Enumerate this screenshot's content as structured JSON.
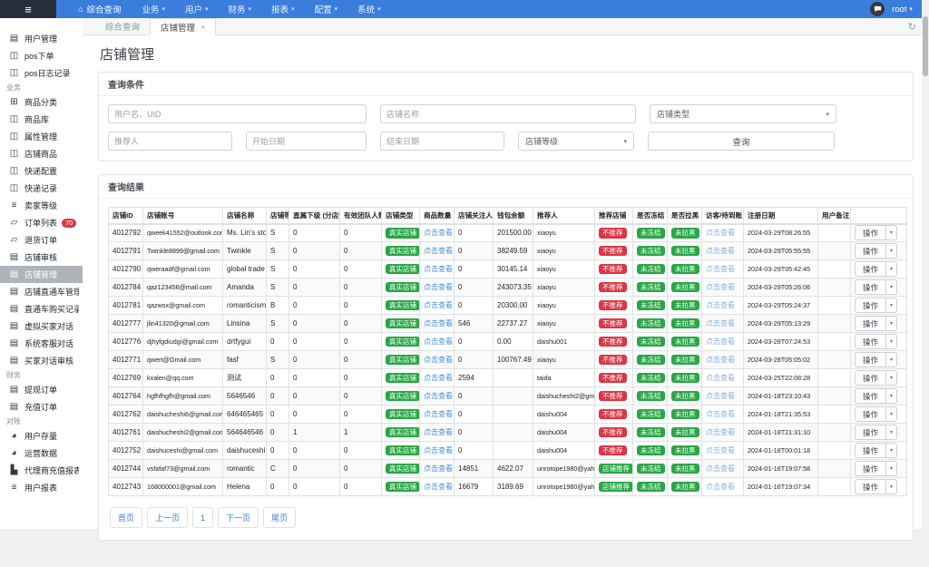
{
  "navbar": {
    "home": {
      "label": "综合查询"
    },
    "menus": [
      {
        "label": "业务"
      },
      {
        "label": "用户"
      },
      {
        "label": "财务"
      },
      {
        "label": "报表"
      },
      {
        "label": "配置"
      },
      {
        "label": "系统"
      }
    ],
    "user": {
      "name": "root"
    }
  },
  "sidebar": {
    "items": [
      {
        "type": "item",
        "label": "用户管理",
        "icon": "file-icon"
      },
      {
        "type": "item",
        "label": "pos下单",
        "icon": "table-icon"
      },
      {
        "type": "item",
        "label": "pos日志记录",
        "icon": "table-icon"
      },
      {
        "type": "section",
        "label": "业务"
      },
      {
        "type": "item",
        "label": "商品分类",
        "icon": "laptop-icon"
      },
      {
        "type": "item",
        "label": "商品库",
        "icon": "table-icon"
      },
      {
        "type": "item",
        "label": "属性管理",
        "icon": "table-icon"
      },
      {
        "type": "item",
        "label": "店铺商品",
        "icon": "table-icon"
      },
      {
        "type": "item",
        "label": "快递配置",
        "icon": "table-icon"
      },
      {
        "type": "item",
        "label": "快递记录",
        "icon": "table-icon"
      },
      {
        "type": "item",
        "label": "卖家等级",
        "icon": "list-icon"
      },
      {
        "type": "item",
        "label": "订单列表",
        "icon": "order-icon",
        "badge": "70"
      },
      {
        "type": "item",
        "label": "退货订单",
        "icon": "order-icon"
      },
      {
        "type": "item",
        "label": "店铺审核",
        "icon": "card-icon"
      },
      {
        "type": "item",
        "label": "店铺管理",
        "icon": "card-icon",
        "active": true
      },
      {
        "type": "item",
        "label": "店铺直通车管理",
        "icon": "card-icon"
      },
      {
        "type": "item",
        "label": "直通车购买记录",
        "icon": "card-icon"
      },
      {
        "type": "item",
        "label": "虚拟买家对话",
        "icon": "card-icon"
      },
      {
        "type": "item",
        "label": "系统客服对话",
        "icon": "card-icon"
      },
      {
        "type": "item",
        "label": "买家对话审核",
        "icon": "card-icon"
      },
      {
        "type": "section",
        "label": "财务"
      },
      {
        "type": "item",
        "label": "提现订单",
        "icon": "card-icon"
      },
      {
        "type": "item",
        "label": "充值订单",
        "icon": "card-icon"
      },
      {
        "type": "section",
        "label": "对账"
      },
      {
        "type": "item",
        "label": "用户存量",
        "icon": "pie-icon"
      },
      {
        "type": "item",
        "label": "运营数据",
        "icon": "pie-icon"
      },
      {
        "type": "item",
        "label": "代理商充值报表",
        "icon": "chart-icon"
      },
      {
        "type": "item",
        "label": "用户报表",
        "icon": "list-icon"
      }
    ]
  },
  "tabs": [
    {
      "label": "综合查询",
      "active": false
    },
    {
      "label": "店铺管理",
      "active": true,
      "close": "×"
    }
  ],
  "page": {
    "title": "店铺管理"
  },
  "query": {
    "title": "查询条件",
    "username_placeholder": "用户名、UID",
    "shopname_placeholder": "店铺名称",
    "shoptype_label": "店铺类型",
    "referrer_placeholder": "推荐人",
    "startdate_placeholder": "开始日期",
    "enddate_placeholder": "结束日期",
    "shoplevel_label": "店铺等级",
    "search_label": "查询"
  },
  "results": {
    "title": "查询结果",
    "headers": [
      "店铺ID",
      "店铺账号",
      "店铺名称",
      "店铺等级",
      "直属下级 (分店数)",
      "有效团队人数",
      "店铺类型",
      "商品数量",
      "店铺关注人数",
      "钱包余额",
      "推荐人",
      "推荐店铺",
      "是否冻结",
      "是否拉黑",
      "访客/待到账",
      "注册日期",
      "用户备注",
      ""
    ],
    "common": {
      "shop_type": "真实店铺",
      "goods_link": "点击查看",
      "frozen": "未冻结",
      "blacklist": "未拉黑",
      "visitor_link": "点击查看",
      "action": "操作"
    },
    "rows": [
      {
        "id": "4012792",
        "account": "qweek41552@outlook.com",
        "name": "Ms. Lin's store",
        "level": "S",
        "subs": "0",
        "team": "0",
        "followers": "0",
        "balance": "201500.00",
        "referrer": "xiaoyu",
        "recommend": "不推荐",
        "recommend_good": false,
        "date": "2024-03-29T08:26:55",
        "remark": ""
      },
      {
        "id": "4012791",
        "account": "Twinkle8899@gmail.com",
        "name": "Twinkle",
        "level": "S",
        "subs": "0",
        "team": "0",
        "followers": "0",
        "balance": "38249.59",
        "referrer": "xiaoyu",
        "recommend": "不推荐",
        "recommend_good": false,
        "date": "2024-03-29T05:55:55",
        "remark": ""
      },
      {
        "id": "4012790",
        "account": "qweraadf@gmail.com",
        "name": "global trade",
        "level": "S",
        "subs": "0",
        "team": "0",
        "followers": "0",
        "balance": "30145.14",
        "referrer": "xiaoyu",
        "recommend": "不推荐",
        "recommend_good": false,
        "date": "2024-03-29T05:42:45",
        "remark": ""
      },
      {
        "id": "4012784",
        "account": "qaz123456@mail.com",
        "name": "Amanda",
        "level": "S",
        "subs": "0",
        "team": "0",
        "followers": "0",
        "balance": "243073.35",
        "referrer": "xiaoyu",
        "recommend": "不推荐",
        "recommend_good": false,
        "date": "2024-03-29T05:26:06",
        "remark": ""
      },
      {
        "id": "4012781",
        "account": "qazwsx@gmail.com",
        "name": "romanticism",
        "level": "B",
        "subs": "0",
        "team": "0",
        "followers": "0",
        "balance": "20300.00",
        "referrer": "xiaoyu",
        "recommend": "不推荐",
        "recommend_good": false,
        "date": "2024-03-29T05:24:37",
        "remark": ""
      },
      {
        "id": "4012777",
        "account": "jlin41320@gmail.com",
        "name": "Linsina",
        "level": "S",
        "subs": "0",
        "team": "0",
        "followers": "546",
        "balance": "22737.27",
        "referrer": "xiaoyu",
        "recommend": "不推荐",
        "recommend_good": false,
        "date": "2024-03-29T05:13:29",
        "remark": ""
      },
      {
        "id": "4012776",
        "account": "djhyfgdiudgi@gmail.com",
        "name": "drtfygui",
        "level": "0",
        "subs": "0",
        "team": "0",
        "followers": "0",
        "balance": "0.00",
        "referrer": "daishu001",
        "recommend": "不推荐",
        "recommend_good": false,
        "date": "2024-03-28T07:24:53",
        "remark": ""
      },
      {
        "id": "4012771",
        "account": "qwert@Gmail.com",
        "name": "fasf",
        "level": "S",
        "subs": "0",
        "team": "0",
        "followers": "0",
        "balance": "100767.49",
        "referrer": "xiaoyu",
        "recommend": "不推荐",
        "recommend_good": false,
        "date": "2024-03-28T05:05:02",
        "remark": ""
      },
      {
        "id": "4012769",
        "account": "kxalen@qq.com",
        "name": "测试",
        "level": "0",
        "subs": "0",
        "team": "0",
        "followers": "2594",
        "balance": "",
        "referrer": "taida",
        "recommend": "不推荐",
        "recommend_good": false,
        "date": "2024-03-25T22:08:28",
        "remark": ""
      },
      {
        "id": "4012764",
        "account": "hgfhfhgfh@gmail.com",
        "name": "5646546",
        "level": "0",
        "subs": "0",
        "team": "0",
        "followers": "0",
        "balance": "",
        "referrer": "daishucheshi2@gmail.com",
        "recommend": "不推荐",
        "recommend_good": false,
        "date": "2024-01-18T23:10:43",
        "remark": ""
      },
      {
        "id": "4012762",
        "account": "daishucheshi6@gmail.com",
        "name": "646465465",
        "level": "0",
        "subs": "0",
        "team": "0",
        "followers": "0",
        "balance": "",
        "referrer": "daishu004",
        "recommend": "不推荐",
        "recommend_good": false,
        "date": "2024-01-18T21:35:53",
        "remark": ""
      },
      {
        "id": "4012761",
        "account": "daishucheshi2@gmail.com",
        "name": "564646546",
        "level": "0",
        "subs": "1",
        "team": "1",
        "followers": "0",
        "balance": "",
        "referrer": "daishu004",
        "recommend": "不推荐",
        "recommend_good": false,
        "date": "2024-01-18T21:31:10",
        "remark": ""
      },
      {
        "id": "4012752",
        "account": "daishuceshi@gmail.com",
        "name": "daishuceshi",
        "level": "0",
        "subs": "0",
        "team": "0",
        "followers": "0",
        "balance": "",
        "referrer": "daishu004",
        "recommend": "不推荐",
        "recommend_good": false,
        "date": "2024-01-18T00:01:18",
        "remark": ""
      },
      {
        "id": "4012744",
        "account": "vsfafaf73@gmail.com",
        "name": "romantic",
        "level": "C",
        "subs": "0",
        "team": "0",
        "followers": "14851",
        "balance": "4622.07",
        "referrer": "unrotope1980@yahoo.com",
        "recommend": "店铺推荐",
        "recommend_good": true,
        "date": "2024-01-16T19:07:58",
        "remark": ""
      },
      {
        "id": "4012743",
        "account": "168000001@gmail.com",
        "name": "Helena",
        "level": "0",
        "subs": "0",
        "team": "0",
        "followers": "16679",
        "balance": "3189.69",
        "referrer": "unrotope1980@yahoo.com",
        "recommend": "店铺推荐",
        "recommend_good": true,
        "date": "2024-01-16T19:07:34",
        "remark": ""
      }
    ]
  },
  "pagination": [
    "首页",
    "上一页",
    "1",
    "下一页",
    "尾页"
  ],
  "colors": {
    "navbar": "#3b7ddd",
    "badge_green": "#28a745",
    "badge_red": "#dc3545",
    "link_blue": "#4a90d9"
  }
}
